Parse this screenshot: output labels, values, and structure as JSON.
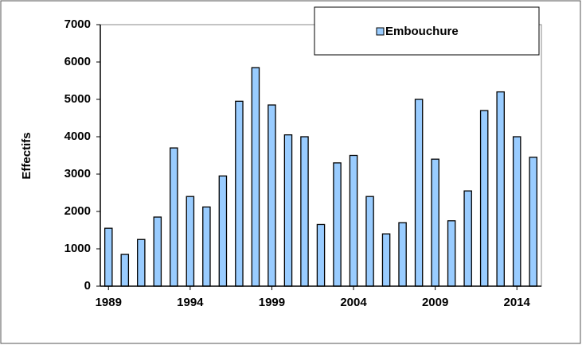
{
  "chart_data": {
    "type": "bar",
    "y_label": "Effectifs",
    "x": [
      1989,
      1990,
      1991,
      1992,
      1993,
      1994,
      1995,
      1996,
      1997,
      1998,
      1999,
      2000,
      2001,
      2002,
      2003,
      2004,
      2005,
      2006,
      2007,
      2008,
      2009,
      2010,
      2011,
      2012,
      2013,
      2014,
      2015
    ],
    "series": [
      {
        "name": "Embouchure",
        "color": "#99ccff",
        "values": [
          1550,
          850,
          1250,
          1850,
          3700,
          2400,
          2120,
          2950,
          4950,
          5850,
          4850,
          4050,
          4000,
          1650,
          3300,
          3500,
          2400,
          1400,
          1700,
          5000,
          3400,
          1750,
          2550,
          4700,
          5200,
          4000,
          3450
        ]
      }
    ],
    "xlim": [
      1988.5,
      2015.5
    ],
    "xticks": [
      1989,
      1994,
      1999,
      2004,
      2009,
      2014
    ],
    "ylim": [
      0,
      7000
    ],
    "yticks": [
      0,
      1000,
      2000,
      3000,
      4000,
      5000,
      6000,
      7000
    ],
    "grid": false,
    "legend": "top-right"
  }
}
